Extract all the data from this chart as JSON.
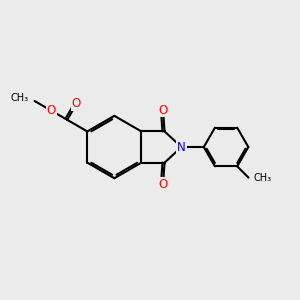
{
  "bg_color": "#ebebeb",
  "bond_color": "#000000",
  "bond_width": 1.5,
  "atom_colors": {
    "O": "#ff0000",
    "N": "#0000ee",
    "C": "#000000"
  },
  "font_size_atom": 8.5,
  "font_size_small": 7.5
}
